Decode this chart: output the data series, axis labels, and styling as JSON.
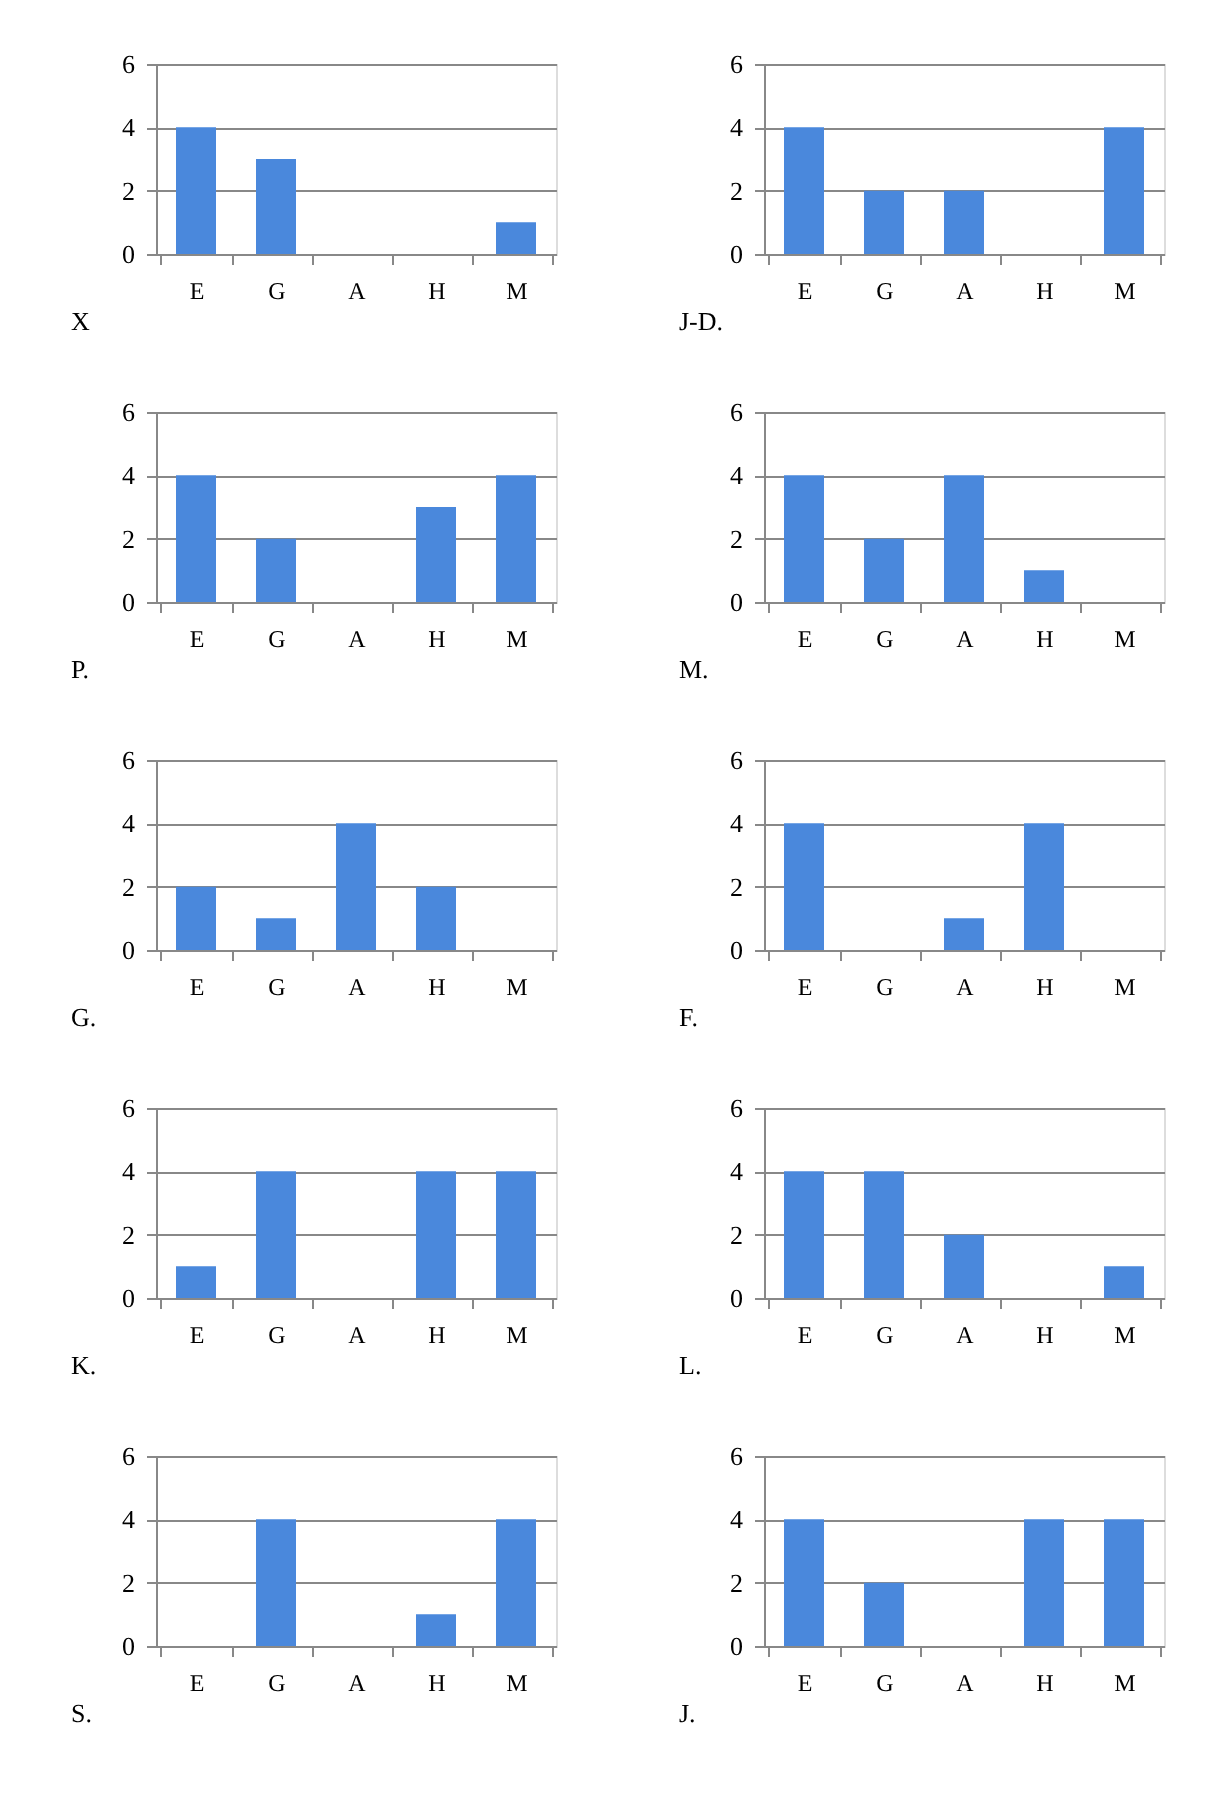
{
  "chart_data": [
    {
      "type": "bar",
      "title": "X",
      "categories": [
        "E",
        "G",
        "A",
        "H",
        "M"
      ],
      "values": [
        4,
        3,
        0,
        0,
        1
      ],
      "color": "#4a88dc",
      "ylim": [
        0,
        6
      ],
      "yticks": [
        0,
        2,
        4,
        6
      ],
      "grid": "y",
      "legend": false
    },
    {
      "type": "bar",
      "title": "J-D.",
      "categories": [
        "E",
        "G",
        "A",
        "H",
        "M"
      ],
      "values": [
        4,
        2,
        2,
        0,
        4
      ],
      "color": "#4a88dc",
      "ylim": [
        0,
        6
      ],
      "yticks": [
        0,
        2,
        4,
        6
      ],
      "grid": "y"
    },
    {
      "type": "bar",
      "title": "P.",
      "categories": [
        "E",
        "G",
        "A",
        "H",
        "M"
      ],
      "values": [
        4,
        2,
        0,
        3,
        4
      ],
      "color": "#4a88dc",
      "ylim": [
        0,
        6
      ],
      "yticks": [
        0,
        2,
        4,
        6
      ],
      "grid": "y"
    },
    {
      "type": "bar",
      "title": "M.",
      "categories": [
        "E",
        "G",
        "A",
        "H",
        "M"
      ],
      "values": [
        4,
        2,
        4,
        1,
        0
      ],
      "color": "#4a88dc",
      "ylim": [
        0,
        6
      ],
      "yticks": [
        0,
        2,
        4,
        6
      ],
      "grid": "y"
    },
    {
      "type": "bar",
      "title": "G.",
      "categories": [
        "E",
        "G",
        "A",
        "H",
        "M"
      ],
      "values": [
        2,
        1,
        4,
        2,
        0
      ],
      "color": "#4a88dc",
      "ylim": [
        0,
        6
      ],
      "yticks": [
        0,
        2,
        4,
        6
      ],
      "grid": "y"
    },
    {
      "type": "bar",
      "title": "F.",
      "categories": [
        "E",
        "G",
        "A",
        "H",
        "M"
      ],
      "values": [
        4,
        0,
        1,
        4,
        0
      ],
      "color": "#4a88dc",
      "ylim": [
        0,
        6
      ],
      "yticks": [
        0,
        2,
        4,
        6
      ],
      "grid": "y"
    },
    {
      "type": "bar",
      "title": "K.",
      "categories": [
        "E",
        "G",
        "A",
        "H",
        "M"
      ],
      "values": [
        1,
        4,
        0,
        4,
        4
      ],
      "color": "#4a88dc",
      "ylim": [
        0,
        6
      ],
      "yticks": [
        0,
        2,
        4,
        6
      ],
      "grid": "y"
    },
    {
      "type": "bar",
      "title": "L.",
      "categories": [
        "E",
        "G",
        "A",
        "H",
        "M"
      ],
      "values": [
        4,
        4,
        2,
        0,
        1
      ],
      "color": "#4a88dc",
      "ylim": [
        0,
        6
      ],
      "yticks": [
        0,
        2,
        4,
        6
      ],
      "grid": "y"
    },
    {
      "type": "bar",
      "title": "S.",
      "categories": [
        "E",
        "G",
        "A",
        "H",
        "M"
      ],
      "values": [
        0,
        4,
        0,
        1,
        4
      ],
      "color": "#4a88dc",
      "ylim": [
        0,
        6
      ],
      "yticks": [
        0,
        2,
        4,
        6
      ],
      "grid": "y"
    },
    {
      "type": "bar",
      "title": "J.",
      "categories": [
        "E",
        "G",
        "A",
        "H",
        "M"
      ],
      "values": [
        4,
        2,
        0,
        4,
        4
      ],
      "color": "#4a88dc",
      "ylim": [
        0,
        6
      ],
      "yticks": [
        0,
        2,
        4,
        6
      ],
      "grid": "y"
    }
  ]
}
